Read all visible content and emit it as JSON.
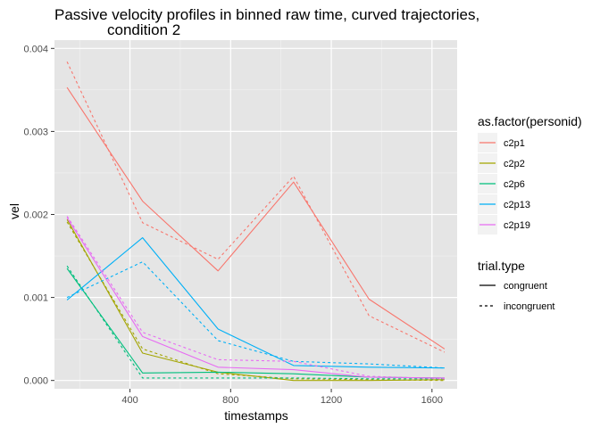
{
  "chart_data": {
    "type": "line",
    "title_line1": "Passive velocity profiles in binned raw time, curved trajectories,",
    "title_line2": "condition 2",
    "xlabel": "timestamps",
    "ylabel": "vel",
    "xlim": [
      100,
      1700
    ],
    "ylim": [
      -0.0001,
      0.0041
    ],
    "x_ticks": [
      400,
      800,
      1200,
      1600
    ],
    "y_ticks": [
      0.0,
      0.001,
      0.002,
      0.003,
      0.004
    ],
    "x_tick_labels": [
      "400",
      "800",
      "1200",
      "1600"
    ],
    "y_tick_labels": [
      "0.000",
      "0.001",
      "0.002",
      "0.003",
      "0.004"
    ],
    "grid": true,
    "background": "#e5e5e5",
    "legend_placement": "right",
    "color_legend": {
      "title": "as.factor(personid)",
      "entries": [
        {
          "label": "c2p1",
          "color": "#f8766d"
        },
        {
          "label": "c2p2",
          "color": "#a3a500"
        },
        {
          "label": "c2p6",
          "color": "#00bf7d"
        },
        {
          "label": "c2p13",
          "color": "#00b0f6"
        },
        {
          "label": "c2p19",
          "color": "#e76bf3"
        }
      ]
    },
    "linetype_legend": {
      "title": "trial.type",
      "entries": [
        {
          "label": "congruent",
          "dash": "solid"
        },
        {
          "label": "incongruent",
          "dash": "dashed"
        }
      ]
    },
    "series": [
      {
        "person": "c2p1",
        "trial_type": "congruent",
        "color": "#f8766d",
        "dash": "solid",
        "x": [
          150,
          450,
          750,
          1050,
          1350,
          1650
        ],
        "y": [
          0.00353,
          0.00216,
          0.00132,
          0.00239,
          0.00098,
          0.00038
        ]
      },
      {
        "person": "c2p1",
        "trial_type": "incongruent",
        "color": "#f8766d",
        "dash": "dashed",
        "x": [
          150,
          450,
          750,
          1050,
          1350,
          1650
        ],
        "y": [
          0.00384,
          0.0019,
          0.00146,
          0.00246,
          0.00078,
          0.00034
        ]
      },
      {
        "person": "c2p2",
        "trial_type": "congruent",
        "color": "#a3a500",
        "dash": "solid",
        "x": [
          150,
          450,
          750,
          1050,
          1350,
          1650
        ],
        "y": [
          0.00194,
          0.00033,
          0.0001,
          0.0,
          0.0,
          1e-05
        ]
      },
      {
        "person": "c2p2",
        "trial_type": "incongruent",
        "color": "#a3a500",
        "dash": "dashed",
        "x": [
          150,
          450,
          750,
          1050,
          1350,
          1650
        ],
        "y": [
          0.00191,
          0.00038,
          8e-05,
          2e-05,
          1e-05,
          0.0
        ]
      },
      {
        "person": "c2p6",
        "trial_type": "congruent",
        "color": "#00bf7d",
        "dash": "solid",
        "x": [
          150,
          450,
          750,
          1050,
          1350,
          1650
        ],
        "y": [
          0.00135,
          9e-05,
          0.0001,
          8e-05,
          4e-05,
          3e-05
        ]
      },
      {
        "person": "c2p6",
        "trial_type": "incongruent",
        "color": "#00bf7d",
        "dash": "dashed",
        "x": [
          150,
          450,
          750,
          1050,
          1350,
          1650
        ],
        "y": [
          0.00138,
          3e-05,
          3e-05,
          3e-05,
          2e-05,
          2e-05
        ]
      },
      {
        "person": "c2p13",
        "trial_type": "congruent",
        "color": "#00b0f6",
        "dash": "solid",
        "x": [
          150,
          450,
          750,
          1050,
          1350,
          1650
        ],
        "y": [
          0.00097,
          0.00172,
          0.00062,
          0.00018,
          0.00016,
          0.00015
        ]
      },
      {
        "person": "c2p13",
        "trial_type": "incongruent",
        "color": "#00b0f6",
        "dash": "dashed",
        "x": [
          150,
          450,
          750,
          1050,
          1350,
          1650
        ],
        "y": [
          0.001,
          0.00143,
          0.00048,
          0.00023,
          0.0002,
          0.00015
        ]
      },
      {
        "person": "c2p19",
        "trial_type": "congruent",
        "color": "#e76bf3",
        "dash": "solid",
        "x": [
          150,
          450,
          750,
          1050,
          1350,
          1650
        ],
        "y": [
          0.00196,
          0.00053,
          0.00016,
          0.00013,
          4e-05,
          3e-05
        ]
      },
      {
        "person": "c2p19",
        "trial_type": "incongruent",
        "color": "#e76bf3",
        "dash": "dashed",
        "x": [
          150,
          450,
          750,
          1050,
          1350,
          1650
        ],
        "y": [
          0.00198,
          0.00058,
          0.00025,
          0.00023,
          5e-05,
          2e-05
        ]
      }
    ]
  }
}
